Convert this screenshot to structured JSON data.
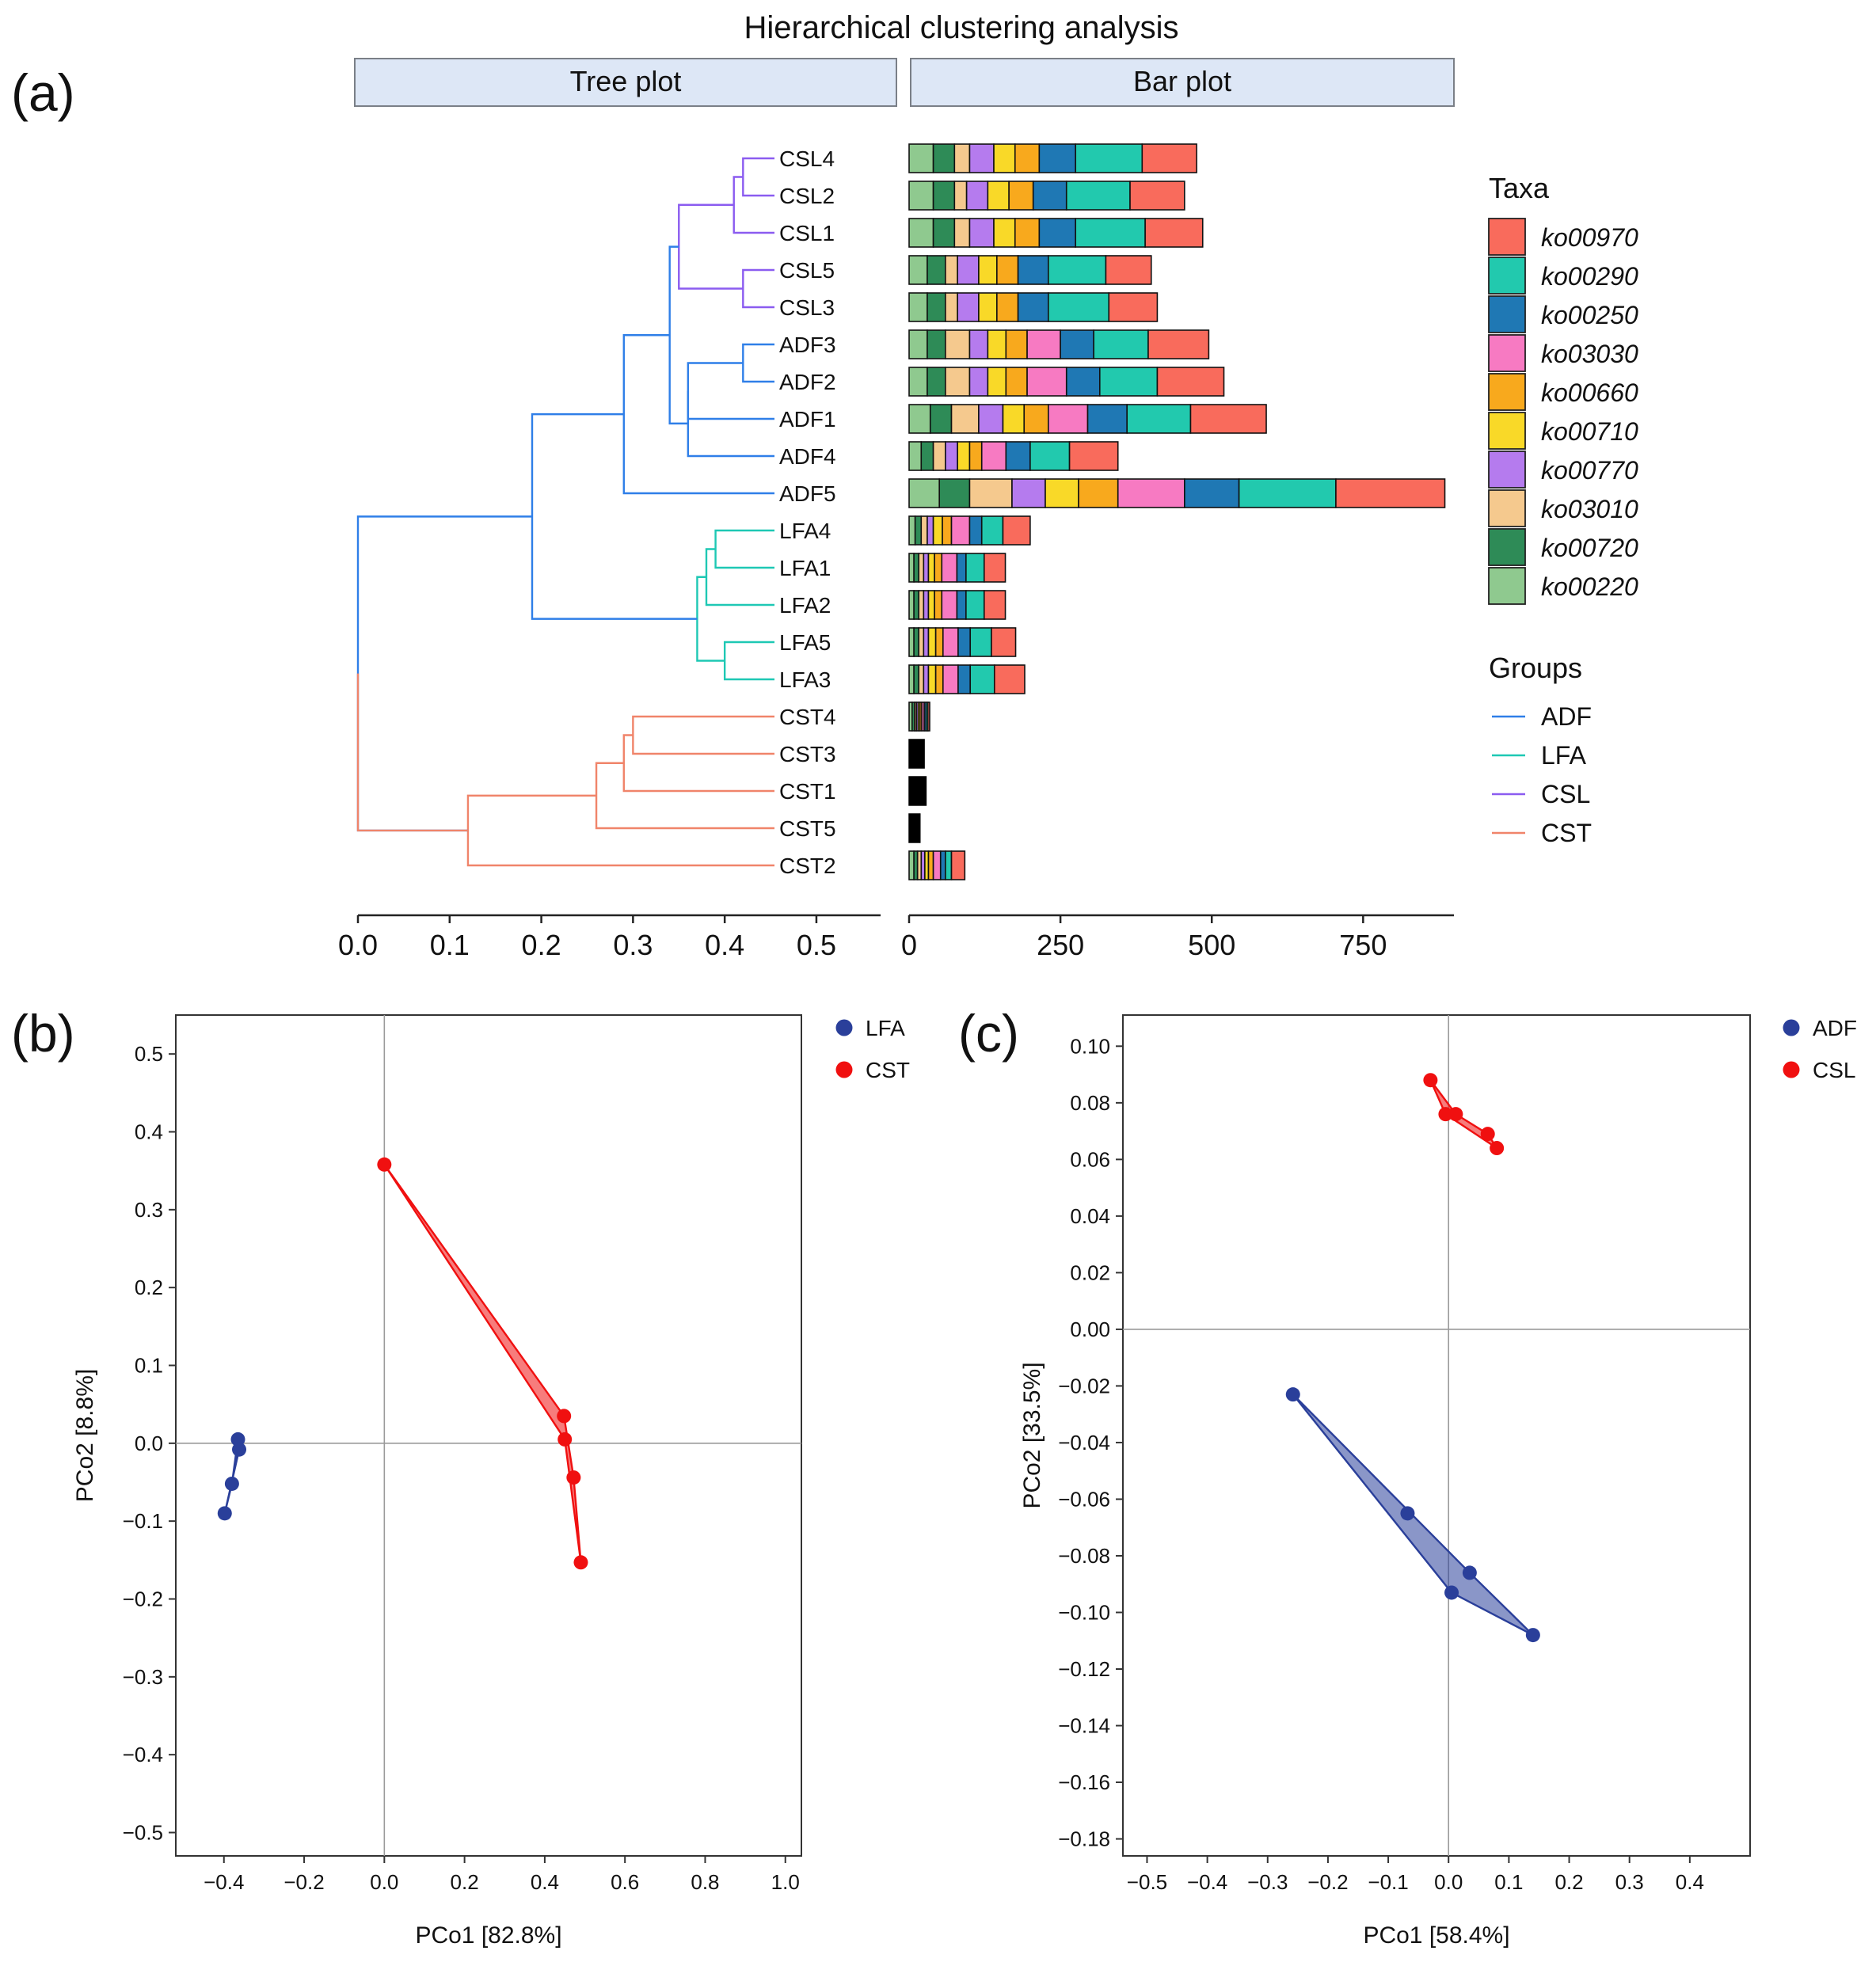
{
  "figure": {
    "title": "Hierarchical clustering analysis",
    "panel_labels": [
      "(a)",
      "(b)",
      "(c)"
    ],
    "strip_labels": [
      "Tree plot",
      "Bar plot"
    ]
  },
  "chart_data": [
    {
      "panel": "(a)",
      "type": "dendrogram",
      "title": "Hierarchical clustering analysis",
      "strip": "Tree plot",
      "leaves": [
        "CSL4",
        "CSL2",
        "CSL1",
        "CSL5",
        "CSL3",
        "ADF3",
        "ADF2",
        "ADF1",
        "ADF4",
        "ADF5",
        "LFA4",
        "LFA1",
        "LFA2",
        "LFA5",
        "LFA3",
        "CST4",
        "CST3",
        "CST1",
        "CST5",
        "CST2"
      ],
      "leaf_groups": [
        "CSL",
        "CSL",
        "CSL",
        "CSL",
        "CSL",
        "ADF",
        "ADF",
        "ADF",
        "ADF",
        "ADF",
        "LFA",
        "LFA",
        "LFA",
        "LFA",
        "LFA",
        "CST",
        "CST",
        "CST",
        "CST",
        "CST"
      ],
      "merges": [
        {
          "a": "CSL4",
          "b": "CSL2",
          "h": 0.42,
          "group": "CSL"
        },
        {
          "a": "m0",
          "b": "CSL1",
          "h": 0.41,
          "group": "CSL"
        },
        {
          "a": "CSL5",
          "b": "CSL3",
          "h": 0.42,
          "group": "CSL"
        },
        {
          "a": "m1",
          "b": "m2",
          "h": 0.35,
          "group": "CSL"
        },
        {
          "a": "ADF3",
          "b": "ADF2",
          "h": 0.42,
          "group": "ADF"
        },
        {
          "a": "m4",
          "b": "ADF1",
          "h": 0.36,
          "group": "ADF"
        },
        {
          "a": "m5",
          "b": "ADF4",
          "h": 0.36,
          "group": "ADF"
        },
        {
          "a": "m3",
          "b": "m6",
          "h": 0.34,
          "group": "ADF"
        },
        {
          "a": "m7",
          "b": "ADF5",
          "h": 0.29,
          "group": "ADF"
        },
        {
          "a": "LFA4",
          "b": "LFA1",
          "h": 0.39,
          "group": "LFA"
        },
        {
          "a": "m9",
          "b": "LFA2",
          "h": 0.38,
          "group": "LFA"
        },
        {
          "a": "LFA5",
          "b": "LFA3",
          "h": 0.4,
          "group": "LFA"
        },
        {
          "a": "m10",
          "b": "m11",
          "h": 0.37,
          "group": "LFA"
        },
        {
          "a": "m8",
          "b": "m12",
          "h": 0.19,
          "group": "ADF"
        },
        {
          "a": "CST4",
          "b": "CST3",
          "h": 0.3,
          "group": "CST"
        },
        {
          "a": "m14",
          "b": "CST1",
          "h": 0.29,
          "group": "CST"
        },
        {
          "a": "m15",
          "b": "CST5",
          "h": 0.26,
          "group": "CST"
        },
        {
          "a": "m16",
          "b": "CST2",
          "h": 0.12,
          "group": "CST"
        },
        {
          "a": "m13",
          "b": "m17",
          "h": 0.0,
          "group": "root"
        }
      ],
      "xlim": [
        0.0,
        0.57
      ],
      "x_ticks": [
        "0.0",
        "0.1",
        "0.2",
        "0.3",
        "0.4",
        "0.5"
      ],
      "group_colors": {
        "ADF": "#2f7fe8",
        "LFA": "#1ec8b4",
        "CSL": "#8b5cf0",
        "CST": "#f0846a",
        "root": "#2f7fe8"
      }
    },
    {
      "panel": "(a)",
      "type": "stacked-bar",
      "orientation": "horizontal",
      "strip": "Bar plot",
      "categories": [
        "CSL4",
        "CSL2",
        "CSL1",
        "CSL5",
        "CSL3",
        "ADF3",
        "ADF2",
        "ADF1",
        "ADF4",
        "ADF5",
        "LFA4",
        "LFA1",
        "LFA2",
        "LFA5",
        "LFA3",
        "CST4",
        "CST3",
        "CST1",
        "CST5",
        "CST2"
      ],
      "series": [
        {
          "name": "ko00220",
          "color": "#8fc98f",
          "values": [
            40,
            40,
            40,
            30,
            30,
            30,
            30,
            35,
            20,
            50,
            10,
            8,
            8,
            8,
            8,
            5,
            0,
            0,
            0,
            8
          ]
        },
        {
          "name": "ko00720",
          "color": "#2e8b57",
          "values": [
            35,
            35,
            35,
            30,
            30,
            30,
            30,
            35,
            20,
            50,
            10,
            8,
            8,
            8,
            8,
            4,
            0,
            0,
            0,
            6
          ]
        },
        {
          "name": "ko03010",
          "color": "#f5c98e",
          "values": [
            25,
            20,
            25,
            20,
            20,
            40,
            40,
            45,
            20,
            70,
            10,
            8,
            8,
            8,
            8,
            3,
            0,
            0,
            0,
            6
          ]
        },
        {
          "name": "ko00770",
          "color": "#b57bee",
          "values": [
            40,
            35,
            40,
            35,
            35,
            30,
            30,
            40,
            20,
            55,
            10,
            8,
            8,
            8,
            8,
            3,
            0,
            0,
            0,
            6
          ]
        },
        {
          "name": "ko00710",
          "color": "#f9d928",
          "values": [
            35,
            35,
            35,
            30,
            30,
            30,
            30,
            35,
            20,
            55,
            15,
            10,
            10,
            12,
            12,
            3,
            0,
            0,
            0,
            6
          ]
        },
        {
          "name": "ko00660",
          "color": "#f8a91d",
          "values": [
            40,
            40,
            40,
            35,
            35,
            35,
            35,
            40,
            20,
            65,
            15,
            12,
            12,
            12,
            12,
            3,
            0,
            0,
            0,
            8
          ]
        },
        {
          "name": "ko03030",
          "color": "#f77ac2",
          "values": [
            0,
            0,
            0,
            0,
            0,
            55,
            65,
            65,
            40,
            110,
            30,
            25,
            25,
            25,
            25,
            4,
            0,
            0,
            0,
            12
          ]
        },
        {
          "name": "ko00250",
          "color": "#1f78b4",
          "values": [
            60,
            55,
            60,
            50,
            50,
            55,
            55,
            65,
            40,
            90,
            20,
            15,
            15,
            20,
            20,
            3,
            0,
            0,
            0,
            8
          ]
        },
        {
          "name": "ko00290",
          "color": "#22c9ae",
          "values": [
            110,
            105,
            115,
            95,
            100,
            90,
            95,
            105,
            65,
            160,
            35,
            30,
            30,
            35,
            40,
            3,
            0,
            0,
            0,
            10
          ]
        },
        {
          "name": "ko00970",
          "color": "#f96b5c",
          "values": [
            90,
            90,
            95,
            75,
            80,
            100,
            110,
            125,
            80,
            180,
            45,
            35,
            35,
            40,
            50,
            3,
            0,
            0,
            0,
            22
          ]
        }
      ],
      "black_bars": {
        "CST3": 25,
        "CST1": 28,
        "CST5": 18
      },
      "xlim": [
        0,
        900
      ],
      "x_ticks": [
        "0",
        "250",
        "500",
        "750"
      ]
    },
    {
      "panel": "(b)",
      "type": "scatter",
      "xlabel": "PCo1 [82.8%]",
      "ylabel": "PCo2 [8.8%]",
      "xlim": [
        -0.52,
        1.04
      ],
      "ylim": [
        -0.53,
        0.55
      ],
      "x_ticks": [
        "−0.4",
        "−0.2",
        "0.0",
        "0.2",
        "0.4",
        "0.6",
        "0.8",
        "1.0"
      ],
      "y_ticks": [
        "0.5",
        "0.4",
        "0.3",
        "0.2",
        "0.1",
        "0.0",
        "−0.1",
        "−0.2",
        "−0.3",
        "−0.4",
        "−0.5"
      ],
      "series": [
        {
          "name": "LFA",
          "color": "#2a3f9a",
          "points": [
            [
              -0.365,
              0.005
            ],
            [
              -0.362,
              -0.008
            ],
            [
              -0.38,
              -0.052
            ],
            [
              -0.398,
              -0.09
            ]
          ],
          "hull": [
            [
              -0.365,
              0.005
            ],
            [
              -0.362,
              -0.008
            ],
            [
              -0.398,
              -0.09
            ],
            [
              -0.38,
              -0.052
            ]
          ]
        },
        {
          "name": "CST",
          "color": "#f01010",
          "points": [
            [
              0.0,
              0.358
            ],
            [
              0.448,
              0.035
            ],
            [
              0.45,
              0.005
            ],
            [
              0.472,
              -0.044
            ],
            [
              0.49,
              -0.153
            ]
          ],
          "hull": [
            [
              0.0,
              0.358
            ],
            [
              0.448,
              0.035
            ],
            [
              0.472,
              -0.044
            ],
            [
              0.49,
              -0.153
            ],
            [
              0.45,
              0.005
            ]
          ]
        }
      ]
    },
    {
      "panel": "(c)",
      "type": "scatter",
      "xlabel": "PCo1 [58.4%]",
      "ylabel": "PCo2 [33.5%]",
      "xlim": [
        -0.54,
        0.5
      ],
      "ylim": [
        -0.186,
        0.111
      ],
      "x_ticks": [
        "−0.5",
        "−0.4",
        "−0.3",
        "−0.2",
        "−0.1",
        "0.0",
        "0.1",
        "0.2",
        "0.3",
        "0.4"
      ],
      "y_ticks": [
        "0.10",
        "0.08",
        "0.06",
        "0.04",
        "0.02",
        "0.00",
        "−0.02",
        "−0.04",
        "−0.06",
        "−0.08",
        "−0.10",
        "−0.12",
        "−0.14",
        "−0.16",
        "−0.18"
      ],
      "series": [
        {
          "name": "ADF",
          "color": "#2a3f9a",
          "points": [
            [
              -0.258,
              -0.023
            ],
            [
              -0.068,
              -0.065
            ],
            [
              0.035,
              -0.086
            ],
            [
              0.005,
              -0.093
            ],
            [
              0.14,
              -0.108
            ]
          ],
          "hull": [
            [
              -0.258,
              -0.023
            ],
            [
              0.035,
              -0.086
            ],
            [
              0.14,
              -0.108
            ],
            [
              0.005,
              -0.093
            ]
          ]
        },
        {
          "name": "CSL",
          "color": "#f01010",
          "points": [
            [
              -0.03,
              0.088
            ],
            [
              -0.005,
              0.076
            ],
            [
              0.012,
              0.076
            ],
            [
              0.065,
              0.069
            ],
            [
              0.08,
              0.064
            ]
          ],
          "hull": [
            [
              -0.03,
              0.088
            ],
            [
              0.012,
              0.076
            ],
            [
              0.065,
              0.069
            ],
            [
              0.08,
              0.064
            ],
            [
              -0.005,
              0.076
            ]
          ]
        }
      ]
    }
  ],
  "legends": {
    "taxa": {
      "title": "Taxa",
      "items": [
        {
          "label": "ko00970",
          "color": "#f96b5c"
        },
        {
          "label": "ko00290",
          "color": "#22c9ae"
        },
        {
          "label": "ko00250",
          "color": "#1f78b4"
        },
        {
          "label": "ko03030",
          "color": "#f77ac2"
        },
        {
          "label": "ko00660",
          "color": "#f8a91d"
        },
        {
          "label": "ko00710",
          "color": "#f9d928"
        },
        {
          "label": "ko00770",
          "color": "#b57bee"
        },
        {
          "label": "ko03010",
          "color": "#f5c98e"
        },
        {
          "label": "ko00720",
          "color": "#2e8b57"
        },
        {
          "label": "ko00220",
          "color": "#8fc98f"
        }
      ]
    },
    "groups": {
      "title": "Groups",
      "items": [
        {
          "label": "ADF",
          "color": "#2f7fe8"
        },
        {
          "label": "LFA",
          "color": "#1ec8b4"
        },
        {
          "label": "CSL",
          "color": "#8b5cf0"
        },
        {
          "label": "CST",
          "color": "#f0846a"
        }
      ]
    }
  }
}
